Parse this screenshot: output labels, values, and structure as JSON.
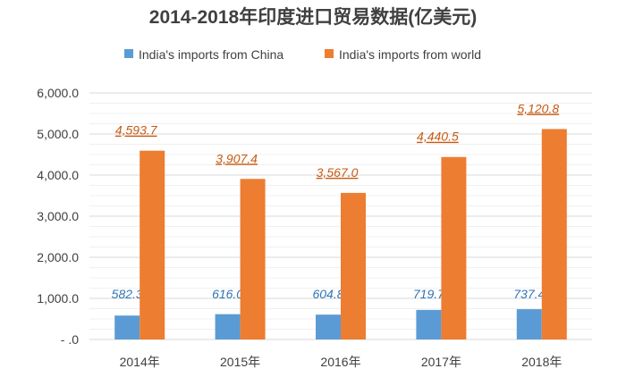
{
  "chart_data": {
    "type": "bar",
    "title": "2014-2018年印度进口贸易数据(亿美元)",
    "xlabel": "",
    "ylabel": "",
    "ylim": [
      0,
      6000
    ],
    "yticks": [
      0,
      1000,
      2000,
      3000,
      4000,
      5000,
      6000
    ],
    "ytick_labels": [
      "- .0",
      "1,000.0",
      "2,000.0",
      "3,000.0",
      "4,000.0",
      "5,000.0",
      "6,000.0"
    ],
    "grid": true,
    "legend_position": "top",
    "categories": [
      "2014年",
      "2015年",
      "2016年",
      "2017年",
      "2018年"
    ],
    "series": [
      {
        "name": "India's imports from China",
        "color": "#5b9bd5",
        "label_color": "#2e75b6",
        "values": [
          582.3,
          616.0,
          604.8,
          719.7,
          737.4
        ],
        "labels": [
          "582.3",
          "616.0",
          "604.8",
          "719.7",
          "737.4"
        ]
      },
      {
        "name": "India's imports from world",
        "color": "#ed7d31",
        "label_color": "#c55a11",
        "values": [
          4593.7,
          3907.4,
          3567.0,
          4440.5,
          5120.8
        ],
        "labels": [
          "4,593.7",
          "3,907.4",
          "3,567.0",
          "4,440.5",
          "5,120.8"
        ]
      }
    ]
  }
}
